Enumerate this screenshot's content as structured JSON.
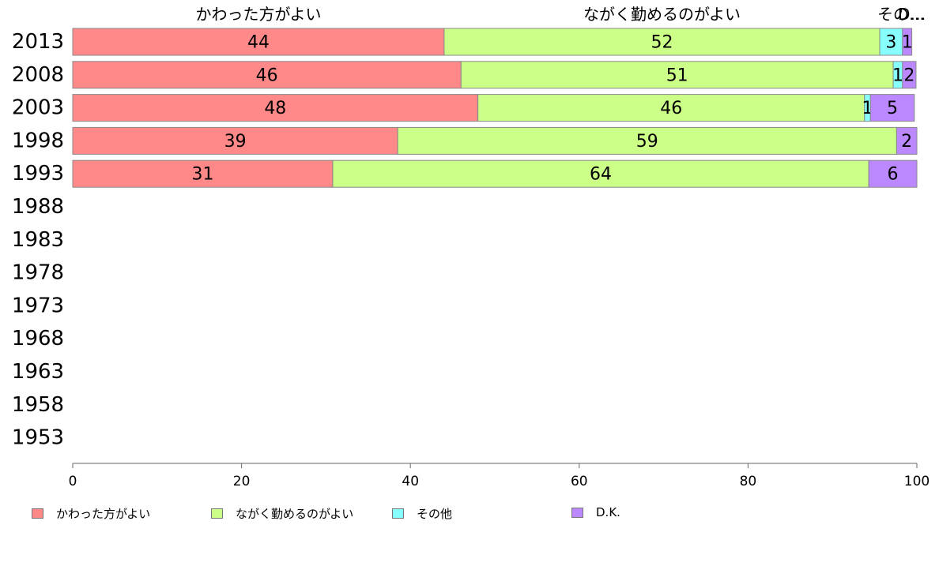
{
  "chart_data": {
    "type": "bar",
    "orientation": "horizontal",
    "stacked": true,
    "title": "",
    "xlabel": "",
    "ylabel": "",
    "xlim": [
      0,
      100
    ],
    "x_ticks": [
      "0",
      "20",
      "40",
      "60",
      "80",
      "100"
    ],
    "categories": [
      "2013",
      "2008",
      "2003",
      "1998",
      "1993",
      "1988",
      "1983",
      "1978",
      "1973",
      "1968",
      "1963",
      "1958",
      "1953"
    ],
    "top_labels": [
      "かわった方がよい",
      "ながく勤めるのがよい",
      "その…",
      "D…"
    ],
    "series": [
      {
        "name": "かわった方がよい",
        "color": "#ff8888",
        "values": [
          44,
          46,
          48,
          38.5,
          30.8,
          null,
          null,
          null,
          null,
          null,
          null,
          null,
          null
        ],
        "labels": [
          "44",
          "46",
          "48",
          "39",
          "31",
          "",
          "",
          "",
          "",
          "",
          "",
          "",
          ""
        ]
      },
      {
        "name": "ながく勤めるのがよい",
        "color": "#ccff88",
        "values": [
          51.6,
          51.2,
          45.8,
          59.1,
          63.5,
          null,
          null,
          null,
          null,
          null,
          null,
          null,
          null
        ],
        "labels": [
          "52",
          "51",
          "46",
          "59",
          "64",
          "",
          "",
          "",
          "",
          "",
          "",
          "",
          ""
        ]
      },
      {
        "name": "その他",
        "color": "#88ffff",
        "values": [
          2.7,
          1.1,
          0.7,
          0,
          0,
          null,
          null,
          null,
          null,
          null,
          null,
          null,
          null
        ],
        "labels": [
          "3",
          "1",
          "1",
          "",
          "",
          "",
          "",
          "",
          "",
          "",
          "",
          "",
          ""
        ]
      },
      {
        "name": "D.K.",
        "color": "#bb88ff",
        "values": [
          1.1,
          1.6,
          5.2,
          2.4,
          5.7,
          null,
          null,
          null,
          null,
          null,
          null,
          null,
          null
        ],
        "labels": [
          "1",
          "2",
          "5",
          "2",
          "6",
          "",
          "",
          "",
          "",
          "",
          "",
          "",
          ""
        ]
      }
    ],
    "legend_position": "bottom"
  }
}
